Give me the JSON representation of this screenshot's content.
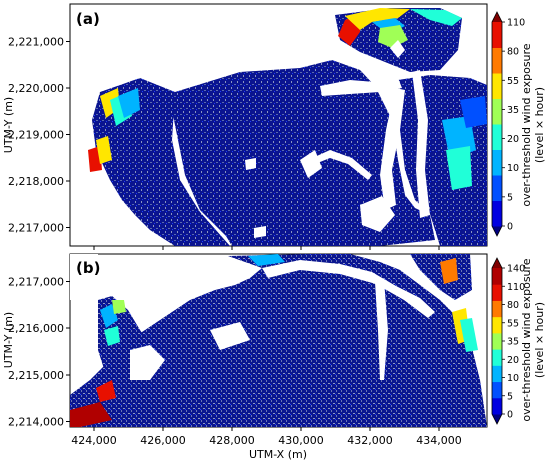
{
  "panels": [
    {
      "label": "(a)",
      "ylabel": "UTM-Y (m)",
      "yticks": [
        "2,221,000",
        "2,220,000",
        "2,219,000",
        "2,218,000",
        "2,217,000"
      ],
      "colorbar": {
        "label_lines": [
          "over-threshold wind exposure",
          "(level × hour)"
        ],
        "ticks": [
          "110",
          "80",
          "55",
          "35",
          "20",
          "10",
          "5",
          "0"
        ],
        "colors": [
          "#00007f",
          "#0000e0",
          "#0050ff",
          "#00b4ff",
          "#20ffd8",
          "#a0ff56",
          "#ffe600",
          "#ff7a00",
          "#e81000",
          "#7f0000"
        ]
      }
    },
    {
      "label": "(b)",
      "ylabel": "UTM-Y (m)",
      "yticks": [
        "2,217,000",
        "2,216,000",
        "2,215,000",
        "2,214,000"
      ],
      "colorbar": {
        "label_lines": [
          "over-threshold wind exposure",
          "(level × hour)"
        ],
        "ticks": [
          "140",
          "110",
          "80",
          "55",
          "35",
          "20",
          "10",
          "5",
          "0"
        ],
        "colors": [
          "#00007f",
          "#0000e0",
          "#0050ff",
          "#00b4ff",
          "#20ffd8",
          "#a0ff56",
          "#ffe600",
          "#ff7a00",
          "#e81000",
          "#b00000",
          "#7f0000"
        ]
      }
    }
  ],
  "xaxis": {
    "label": "UTM-X (m)",
    "ticks": [
      "424,000",
      "426,000",
      "428,000",
      "430,000",
      "432,000",
      "434,000"
    ]
  }
}
